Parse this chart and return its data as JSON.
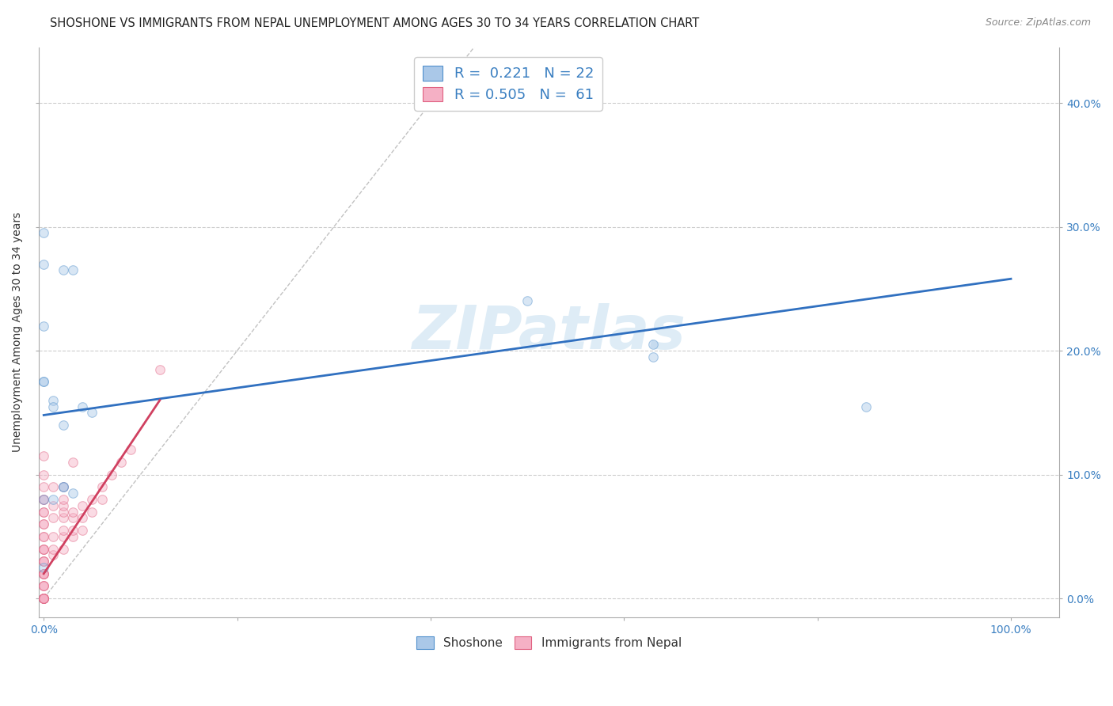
{
  "title": "SHOSHONE VS IMMIGRANTS FROM NEPAL UNEMPLOYMENT AMONG AGES 30 TO 34 YEARS CORRELATION CHART",
  "source": "Source: ZipAtlas.com",
  "ylabel": "Unemployment Among Ages 30 to 34 years",
  "xlim": [
    -0.005,
    1.05
  ],
  "ylim": [
    -0.015,
    0.445
  ],
  "xticks": [
    0.0,
    0.2,
    0.4,
    0.6,
    0.8,
    1.0
  ],
  "yticks": [
    0.0,
    0.1,
    0.2,
    0.3,
    0.4
  ],
  "xtick_labels_sparse": {
    "0.0": "0.0%",
    "1.0": "100.0%"
  },
  "ytick_labels": [
    "0.0%",
    "10.0%",
    "20.0%",
    "30.0%",
    "40.0%"
  ],
  "shoshone_x": [
    0.0,
    0.0,
    0.02,
    0.0,
    0.0,
    0.0,
    0.01,
    0.01,
    0.05,
    0.02,
    0.03,
    0.02,
    0.04,
    0.02,
    0.03,
    0.63,
    0.63,
    0.85,
    0.0,
    0.01,
    0.0,
    0.5
  ],
  "shoshone_y": [
    0.295,
    0.27,
    0.265,
    0.22,
    0.175,
    0.175,
    0.16,
    0.155,
    0.15,
    0.14,
    0.265,
    0.09,
    0.155,
    0.09,
    0.085,
    0.205,
    0.195,
    0.155,
    0.025,
    0.08,
    0.08,
    0.24
  ],
  "nepal_x": [
    0.0,
    0.0,
    0.0,
    0.0,
    0.0,
    0.0,
    0.0,
    0.0,
    0.0,
    0.0,
    0.0,
    0.0,
    0.0,
    0.0,
    0.0,
    0.0,
    0.0,
    0.0,
    0.0,
    0.0,
    0.0,
    0.0,
    0.0,
    0.0,
    0.0,
    0.0,
    0.0,
    0.0,
    0.0,
    0.0,
    0.0,
    0.01,
    0.01,
    0.01,
    0.01,
    0.01,
    0.01,
    0.02,
    0.02,
    0.02,
    0.02,
    0.02,
    0.02,
    0.02,
    0.02,
    0.03,
    0.03,
    0.03,
    0.03,
    0.03,
    0.04,
    0.04,
    0.04,
    0.05,
    0.05,
    0.06,
    0.06,
    0.07,
    0.08,
    0.09,
    0.12
  ],
  "nepal_y": [
    0.0,
    0.0,
    0.0,
    0.0,
    0.0,
    0.0,
    0.0,
    0.01,
    0.01,
    0.01,
    0.02,
    0.02,
    0.02,
    0.02,
    0.03,
    0.03,
    0.03,
    0.04,
    0.04,
    0.04,
    0.05,
    0.05,
    0.06,
    0.06,
    0.07,
    0.07,
    0.08,
    0.08,
    0.09,
    0.1,
    0.115,
    0.035,
    0.04,
    0.05,
    0.065,
    0.075,
    0.09,
    0.04,
    0.05,
    0.055,
    0.065,
    0.07,
    0.075,
    0.08,
    0.09,
    0.05,
    0.055,
    0.065,
    0.07,
    0.11,
    0.055,
    0.065,
    0.075,
    0.07,
    0.08,
    0.08,
    0.09,
    0.1,
    0.11,
    0.12,
    0.185
  ],
  "shoshone_color": "#aac8e8",
  "nepal_color": "#f5b0c5",
  "shoshone_edge_color": "#5090cc",
  "nepal_edge_color": "#e06080",
  "shoshone_trend_color": "#3070c0",
  "nepal_trend_color": "#d04060",
  "diagonal_color": "#bbbbbb",
  "legend_R_shoshone": "0.221",
  "legend_N_shoshone": "22",
  "legend_R_nepal": "0.505",
  "legend_N_nepal": "61",
  "legend_label_shoshone": "Shoshone",
  "legend_label_nepal": "Immigrants from Nepal",
  "watermark": "ZIPatlas",
  "shoshone_trend_x": [
    0.0,
    1.0
  ],
  "shoshone_trend_y": [
    0.148,
    0.258
  ],
  "nepal_trend_x": [
    0.0,
    0.12
  ],
  "nepal_trend_y": [
    0.02,
    0.16
  ],
  "grid_color": "#cccccc",
  "background_color": "#ffffff",
  "title_fontsize": 10.5,
  "axis_label_fontsize": 10,
  "tick_fontsize": 10,
  "marker_size": 70,
  "marker_alpha": 0.45,
  "marker_linewidth": 0.8
}
